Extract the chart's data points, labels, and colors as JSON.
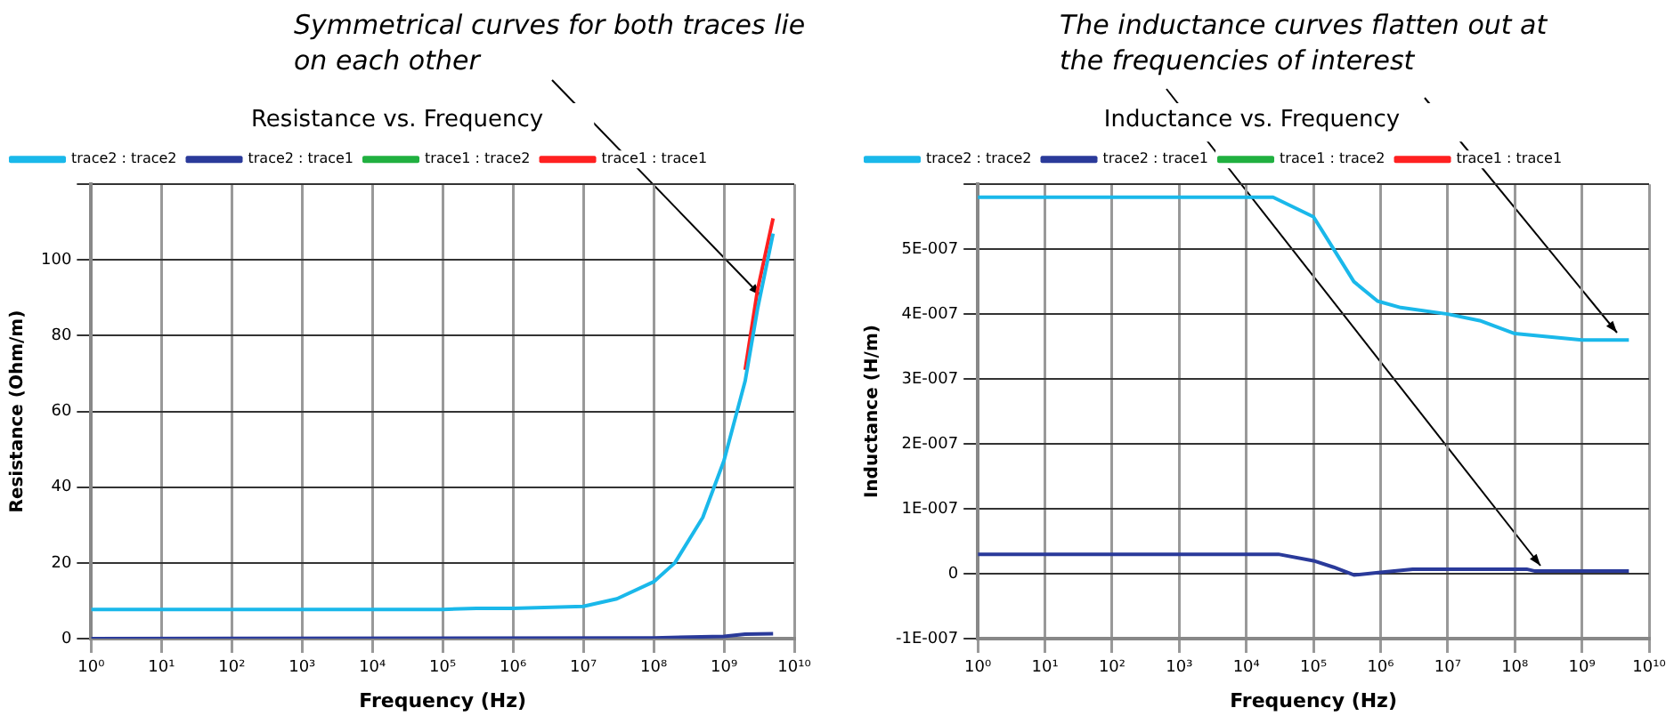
{
  "chart_data": [
    {
      "type": "line",
      "title": "Resistance vs. Frequency",
      "xlabel": "Frequency (Hz)",
      "ylabel": "Resistance (Ohm/m)",
      "log": "x",
      "grid": true,
      "legend": "top left",
      "marker": "none",
      "annotations": [
        "Symmetrical curves for both traces lie on each other"
      ],
      "xlim": [
        1,
        10000000000
      ],
      "xticks": [
        {
          "value": 1,
          "label": "10⁰"
        },
        {
          "value": 10,
          "label": "10¹"
        },
        {
          "value": 100,
          "label": "10²"
        },
        {
          "value": 1000,
          "label": "10³"
        },
        {
          "value": 10000,
          "label": "10⁴"
        },
        {
          "value": 100000,
          "label": "10⁵"
        },
        {
          "value": 1000000,
          "label": "10⁶"
        },
        {
          "value": 10000000,
          "label": "10⁷"
        },
        {
          "value": 100000000,
          "label": "10⁸"
        },
        {
          "value": 1000000000,
          "label": "10⁹"
        },
        {
          "value": 10000000000,
          "label": "10¹⁰"
        }
      ],
      "ylim": [
        0,
        120
      ],
      "yticks": [
        0,
        20,
        40,
        60,
        80,
        100,
        {
          "value": 120,
          "label": null
        }
      ],
      "series": [
        {
          "name": "trace1 : trace1",
          "color": "#ff2020",
          "x": [
            2000000000,
            3000000000,
            5000000000
          ],
          "values": [
            71,
            92,
            111
          ]
        },
        {
          "name": "trace1 : trace2",
          "color": "#20b040"
        },
        {
          "name": "trace2 : trace1",
          "color": "#2a3a9a",
          "x": [
            1,
            100000000,
            1000000000,
            2000000000,
            5000000000
          ],
          "values": [
            0,
            0.2,
            0.6,
            1.2,
            1.3
          ]
        },
        {
          "name": "trace2 : trace2",
          "color": "#1ab8ea",
          "x": [
            1,
            100000,
            300000,
            1000000,
            10000000,
            30000000,
            100000000,
            200000000,
            500000000,
            1000000000,
            2000000000,
            3000000000,
            5000000000
          ],
          "values": [
            7.7,
            7.7,
            8,
            8,
            8.5,
            10.5,
            15,
            20,
            32,
            47,
            68,
            87,
            107
          ]
        }
      ]
    },
    {
      "type": "line",
      "title": "Inductance vs. Frequency",
      "xlabel": "Frequency (Hz)",
      "ylabel": "Inductance (H/m)",
      "log": "x",
      "grid": true,
      "legend": "top left",
      "marker": "none",
      "annotations": [
        "The inductance curves flatten out at the frequencies of interest"
      ],
      "xlim": [
        1,
        10000000000
      ],
      "xticks": [
        {
          "value": 1,
          "label": "10⁰"
        },
        {
          "value": 10,
          "label": "10¹"
        },
        {
          "value": 100,
          "label": "10²"
        },
        {
          "value": 1000,
          "label": "10³"
        },
        {
          "value": 10000,
          "label": "10⁴"
        },
        {
          "value": 100000,
          "label": "10⁵"
        },
        {
          "value": 1000000,
          "label": "10⁶"
        },
        {
          "value": 10000000,
          "label": "10⁷"
        },
        {
          "value": 100000000,
          "label": "10⁸"
        },
        {
          "value": 1000000000,
          "label": "10⁹"
        },
        {
          "value": 10000000000,
          "label": "10¹⁰"
        }
      ],
      "ylim": [
        -1e-07,
        6e-07
      ],
      "yticks": [
        {
          "value": -1e-07,
          "label": "-1E-007"
        },
        0,
        {
          "value": 1e-07,
          "label": "1E-007"
        },
        {
          "value": 2e-07,
          "label": "2E-007"
        },
        {
          "value": 3e-07,
          "label": "3E-007"
        },
        {
          "value": 4e-07,
          "label": "4E-007"
        },
        {
          "value": 5e-07,
          "label": "5E-007"
        },
        {
          "value": 6e-07,
          "label": null
        }
      ],
      "series": [
        {
          "name": "trace1 : trace1",
          "color": "#ff2020"
        },
        {
          "name": "trace1 : trace2",
          "color": "#20b040"
        },
        {
          "name": "trace2 : trace1",
          "color": "#2a3a9a",
          "x": [
            1,
            30000,
            100000,
            200000,
            400000,
            1000000,
            3000000,
            10000000,
            150000000,
            200000000,
            5000000000
          ],
          "values": [
            3e-08,
            3e-08,
            2e-08,
            1e-08,
            -2e-09,
            2e-09,
            7e-09,
            7e-09,
            7e-09,
            4e-09,
            4e-09
          ]
        },
        {
          "name": "trace2 : trace2",
          "color": "#1ab8ea",
          "x": [
            1,
            25000,
            100000,
            200000,
            400000,
            900000,
            2000000,
            10000000,
            30000000,
            100000000,
            1000000000,
            5000000000
          ],
          "values": [
            5.8e-07,
            5.8e-07,
            5.5e-07,
            5e-07,
            4.5e-07,
            4.2e-07,
            4.1e-07,
            4e-07,
            3.9e-07,
            3.7e-07,
            3.6e-07,
            3.6e-07
          ]
        }
      ]
    }
  ]
}
